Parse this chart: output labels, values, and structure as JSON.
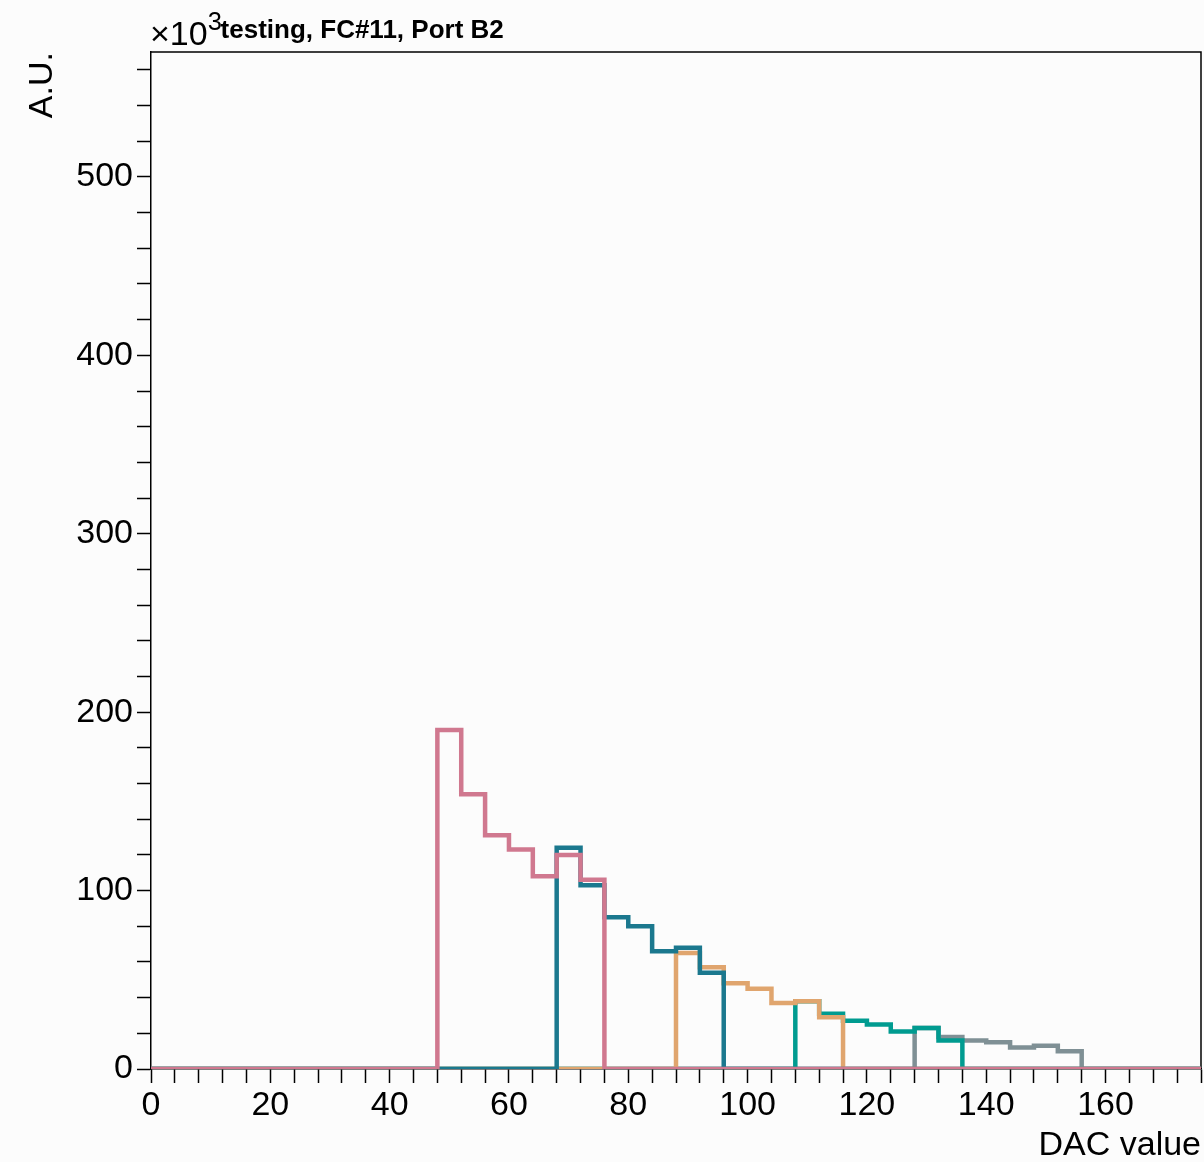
{
  "chart_data": {
    "type": "histogram",
    "title": "testing, FC#11, Port B2",
    "xlabel": "DAC value",
    "ylabel": "A.U.",
    "annotations": [
      "×10$^{3}$"
    ],
    "bins": [
      0,
      4,
      8,
      12,
      16,
      20,
      24,
      28,
      32,
      36,
      40,
      44,
      48,
      52,
      56,
      60,
      64,
      68,
      72,
      76,
      80,
      84,
      88,
      92,
      96,
      100,
      104,
      108,
      112,
      116,
      120,
      124,
      128,
      132,
      136,
      140,
      144,
      148,
      152,
      156,
      160,
      164,
      168,
      172,
      176
    ],
    "series": [
      {
        "color": "#d0788f",
        "values": [
          0,
          0,
          0,
          0,
          0,
          0,
          0,
          0,
          0,
          0,
          0,
          0,
          190,
          154,
          131,
          123,
          108,
          120,
          106,
          0,
          0,
          0,
          0,
          0,
          0,
          0,
          0,
          0,
          0,
          0,
          0,
          0,
          0,
          0,
          0,
          0,
          0,
          0,
          0,
          0,
          0,
          0,
          0,
          0
        ]
      },
      {
        "color": "#1b788e",
        "values": [
          0,
          0,
          0,
          0,
          0,
          0,
          0,
          0,
          0,
          0,
          0,
          0,
          0,
          0,
          0,
          0,
          0,
          124,
          103,
          85,
          80,
          66,
          68,
          54,
          0,
          0,
          0,
          0,
          0,
          0,
          0,
          0,
          0,
          0,
          0,
          0,
          0,
          0,
          0,
          0,
          0,
          0,
          0,
          0
        ]
      },
      {
        "color": "#e0a56e",
        "values": [
          0,
          0,
          0,
          0,
          0,
          0,
          0,
          0,
          0,
          0,
          0,
          0,
          0,
          0,
          0,
          0,
          0,
          0,
          0,
          0,
          0,
          0,
          65,
          57,
          48,
          45,
          37,
          38,
          29,
          0,
          0,
          0,
          0,
          0,
          0,
          0,
          0,
          0,
          0,
          0,
          0,
          0,
          0,
          0
        ]
      },
      {
        "color": "#009b90",
        "values": [
          0,
          0,
          0,
          0,
          0,
          0,
          0,
          0,
          0,
          0,
          0,
          0,
          0,
          0,
          0,
          0,
          0,
          0,
          0,
          0,
          0,
          0,
          0,
          0,
          0,
          0,
          0,
          38,
          31,
          27,
          25,
          21,
          23,
          16,
          0,
          0,
          0,
          0,
          0,
          0,
          0,
          0,
          0,
          0
        ]
      },
      {
        "color": "#7f9095",
        "values": [
          0,
          0,
          0,
          0,
          0,
          0,
          0,
          0,
          0,
          0,
          0,
          0,
          0,
          0,
          0,
          0,
          0,
          0,
          0,
          0,
          0,
          0,
          0,
          0,
          0,
          0,
          0,
          0,
          0,
          0,
          0,
          0,
          23,
          18,
          16,
          15,
          12,
          13,
          10,
          0,
          0,
          0,
          0,
          0
        ]
      }
    ],
    "xlim": [
      0,
      176
    ],
    "xticks": [
      0,
      {
        "value": 4,
        "label": null
      },
      {
        "value": 8,
        "label": null
      },
      {
        "value": 12,
        "label": null
      },
      {
        "value": 16,
        "label": null
      },
      20,
      {
        "value": 24,
        "label": null
      },
      {
        "value": 28,
        "label": null
      },
      {
        "value": 32,
        "label": null
      },
      {
        "value": 36,
        "label": null
      },
      40,
      {
        "value": 44,
        "label": null
      },
      {
        "value": 48,
        "label": null
      },
      {
        "value": 52,
        "label": null
      },
      {
        "value": 56,
        "label": null
      },
      60,
      {
        "value": 64,
        "label": null
      },
      {
        "value": 68,
        "label": null
      },
      {
        "value": 72,
        "label": null
      },
      {
        "value": 76,
        "label": null
      },
      80,
      {
        "value": 84,
        "label": null
      },
      {
        "value": 88,
        "label": null
      },
      {
        "value": 92,
        "label": null
      },
      {
        "value": 96,
        "label": null
      },
      100,
      {
        "value": 104,
        "label": null
      },
      {
        "value": 108,
        "label": null
      },
      {
        "value": 112,
        "label": null
      },
      {
        "value": 116,
        "label": null
      },
      120,
      {
        "value": 124,
        "label": null
      },
      {
        "value": 128,
        "label": null
      },
      {
        "value": 132,
        "label": null
      },
      {
        "value": 136,
        "label": null
      },
      140,
      {
        "value": 144,
        "label": null
      },
      {
        "value": 148,
        "label": null
      },
      {
        "value": 152,
        "label": null
      },
      {
        "value": 156,
        "label": null
      },
      160,
      {
        "value": 164,
        "label": null
      },
      {
        "value": 168,
        "label": null
      },
      {
        "value": 172,
        "label": null
      },
      {
        "value": 176,
        "label": null
      }
    ],
    "ylim": [
      0,
      570
    ],
    "yticks": [
      0,
      {
        "value": 20,
        "label": null
      },
      {
        "value": 40,
        "label": null
      },
      {
        "value": 60,
        "label": null
      },
      {
        "value": 80,
        "label": null
      },
      100,
      {
        "value": 120,
        "label": null
      },
      {
        "value": 140,
        "label": null
      },
      {
        "value": 160,
        "label": null
      },
      {
        "value": 180,
        "label": null
      },
      200,
      {
        "value": 220,
        "label": null
      },
      {
        "value": 240,
        "label": null
      },
      {
        "value": 260,
        "label": null
      },
      {
        "value": 280,
        "label": null
      },
      300,
      {
        "value": 320,
        "label": null
      },
      {
        "value": 340,
        "label": null
      },
      {
        "value": 360,
        "label": null
      },
      {
        "value": 380,
        "label": null
      },
      400,
      {
        "value": 420,
        "label": null
      },
      {
        "value": 440,
        "label": null
      },
      {
        "value": 460,
        "label": null
      },
      {
        "value": 480,
        "label": null
      },
      500,
      {
        "value": 520,
        "label": null
      },
      {
        "value": 540,
        "label": null
      },
      {
        "value": 560,
        "label": null
      }
    ]
  }
}
